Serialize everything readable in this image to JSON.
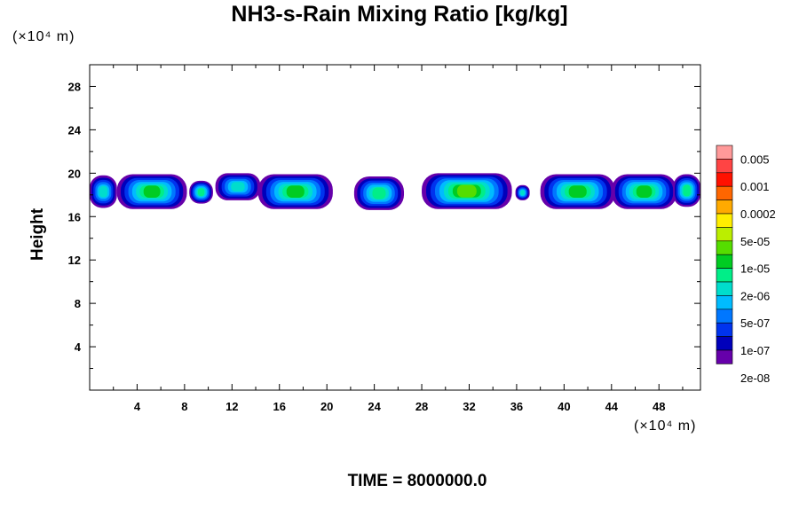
{
  "chart_data": {
    "type": "heatmap",
    "title": "NH3-s-Rain Mixing Ratio [kg/kg]",
    "xlabel_unit": "(×10⁴ m)",
    "ylabel_unit": "(×10⁴ m)",
    "ylabel": "Height",
    "time_label": "TIME = 8000000.0",
    "xlim": [
      0,
      51.5
    ],
    "ylim": [
      0,
      30
    ],
    "xticks": [
      "4",
      "8",
      "12",
      "16",
      "20",
      "24",
      "28",
      "32",
      "36",
      "40",
      "44",
      "48"
    ],
    "yticks": [
      "4",
      "8",
      "12",
      "16",
      "20",
      "24",
      "28"
    ],
    "colorbar": {
      "labels": [
        "0.005",
        "0.001",
        "0.0002",
        "5e-05",
        "1e-05",
        "2e-06",
        "5e-07",
        "1e-07",
        "2e-08"
      ],
      "colors": [
        "#ff9999",
        "#ff4444",
        "#ff1100",
        "#ff6600",
        "#ffaa00",
        "#ffee00",
        "#bbee00",
        "#55dd00",
        "#00cc22",
        "#00ee88",
        "#00ddcc",
        "#00bbff",
        "#0077ff",
        "#0033ee",
        "#0000bb",
        "#6600aa"
      ]
    },
    "cloud_blobs": [
      {
        "x0": 0.0,
        "x1": 2.3,
        "y0": 16.8,
        "y1": 19.8,
        "level": 10
      },
      {
        "x0": 2.3,
        "x1": 8.2,
        "y0": 16.7,
        "y1": 19.9,
        "level": 8
      },
      {
        "x0": 8.4,
        "x1": 10.4,
        "y0": 17.2,
        "y1": 19.3,
        "level": 9
      },
      {
        "x0": 10.6,
        "x1": 14.4,
        "y0": 17.5,
        "y1": 20.0,
        "level": 10
      },
      {
        "x0": 14.2,
        "x1": 20.5,
        "y0": 16.7,
        "y1": 19.9,
        "level": 8
      },
      {
        "x0": 22.3,
        "x1": 26.5,
        "y0": 16.6,
        "y1": 19.7,
        "level": 9
      },
      {
        "x0": 28.0,
        "x1": 35.6,
        "y0": 16.7,
        "y1": 20.0,
        "level": 7
      },
      {
        "x0": 35.9,
        "x1": 37.1,
        "y0": 17.5,
        "y1": 18.9,
        "level": 10
      },
      {
        "x0": 38.0,
        "x1": 44.3,
        "y0": 16.7,
        "y1": 19.9,
        "level": 8
      },
      {
        "x0": 44.0,
        "x1": 49.5,
        "y0": 16.7,
        "y1": 19.9,
        "level": 8
      },
      {
        "x0": 49.2,
        "x1": 51.5,
        "y0": 16.9,
        "y1": 19.9,
        "level": 9
      }
    ]
  }
}
